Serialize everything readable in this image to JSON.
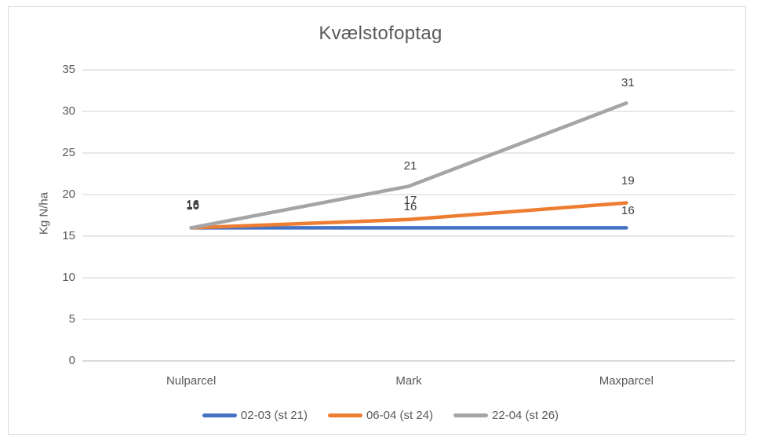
{
  "window": {
    "background": "#FFFFFF",
    "frame_border_color": "#D9D9D9"
  },
  "colors": {
    "gridline": "#D9D9D9",
    "axis_line": "#D9D9D9",
    "axis_text": "#595959",
    "title_text": "#595959",
    "data_label_text": "#404040"
  },
  "chart_data": {
    "type": "line",
    "title": "Kvælstofoptag",
    "xlabel": "",
    "ylabel": "Kg N/ha",
    "categories": [
      "Nulparcel",
      "Mark",
      "Maxparcel"
    ],
    "series": [
      {
        "name": "02-03 (st 21)",
        "color": "#4472C4",
        "values": [
          16,
          16,
          16
        ],
        "label_dy": [
          -3,
          -1,
          4
        ]
      },
      {
        "name": "06-04 (st 24)",
        "color": "#ED7D31",
        "values": [
          16,
          17,
          19
        ],
        "label_dy": [
          -2,
          1,
          -3
        ]
      },
      {
        "name": "22-04 (st 26)",
        "color": "#A5A5A5",
        "values": [
          16,
          21,
          31
        ],
        "label_dy": [
          -4,
          0,
          0
        ]
      }
    ],
    "ylim": [
      0,
      35
    ],
    "yticks": [
      0,
      5,
      10,
      15,
      20,
      25,
      30,
      35
    ],
    "grid": true,
    "data_labels": true,
    "legend_position": "bottom"
  }
}
